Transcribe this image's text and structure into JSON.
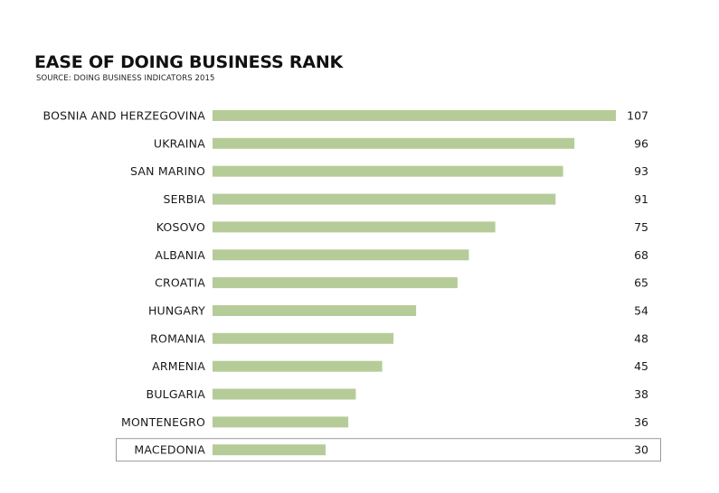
{
  "title": "EASE OF DOING BUSINESS RANK",
  "subtitle": "SOURCE: DOING BUSINESS INDICATORS 2015",
  "colors": {
    "bar": "#b6cc98",
    "highlight_border": "#9a9a9a"
  },
  "chart_data": {
    "type": "bar",
    "orientation": "horizontal",
    "title": "EASE OF DOING BUSINESS RANK",
    "subtitle": "SOURCE: DOING BUSINESS INDICATORS 2015",
    "categories": [
      "BOSNIA AND HERZEGOVINA",
      "UKRAINA",
      "SAN MARINO",
      "SERBIA",
      "KOSOVO",
      "ALBANIA",
      "CROATIA",
      "HUNGARY",
      "ROMANIA",
      "ARMENIA",
      "BULGARIA",
      "MONTENEGRO",
      "MACEDONIA"
    ],
    "values": [
      107,
      96,
      93,
      91,
      75,
      68,
      65,
      54,
      48,
      45,
      38,
      36,
      30
    ],
    "highlighted": "MACEDONIA",
    "xlim": [
      0,
      107
    ],
    "grid": false,
    "legend": "none",
    "data_labels": true
  }
}
